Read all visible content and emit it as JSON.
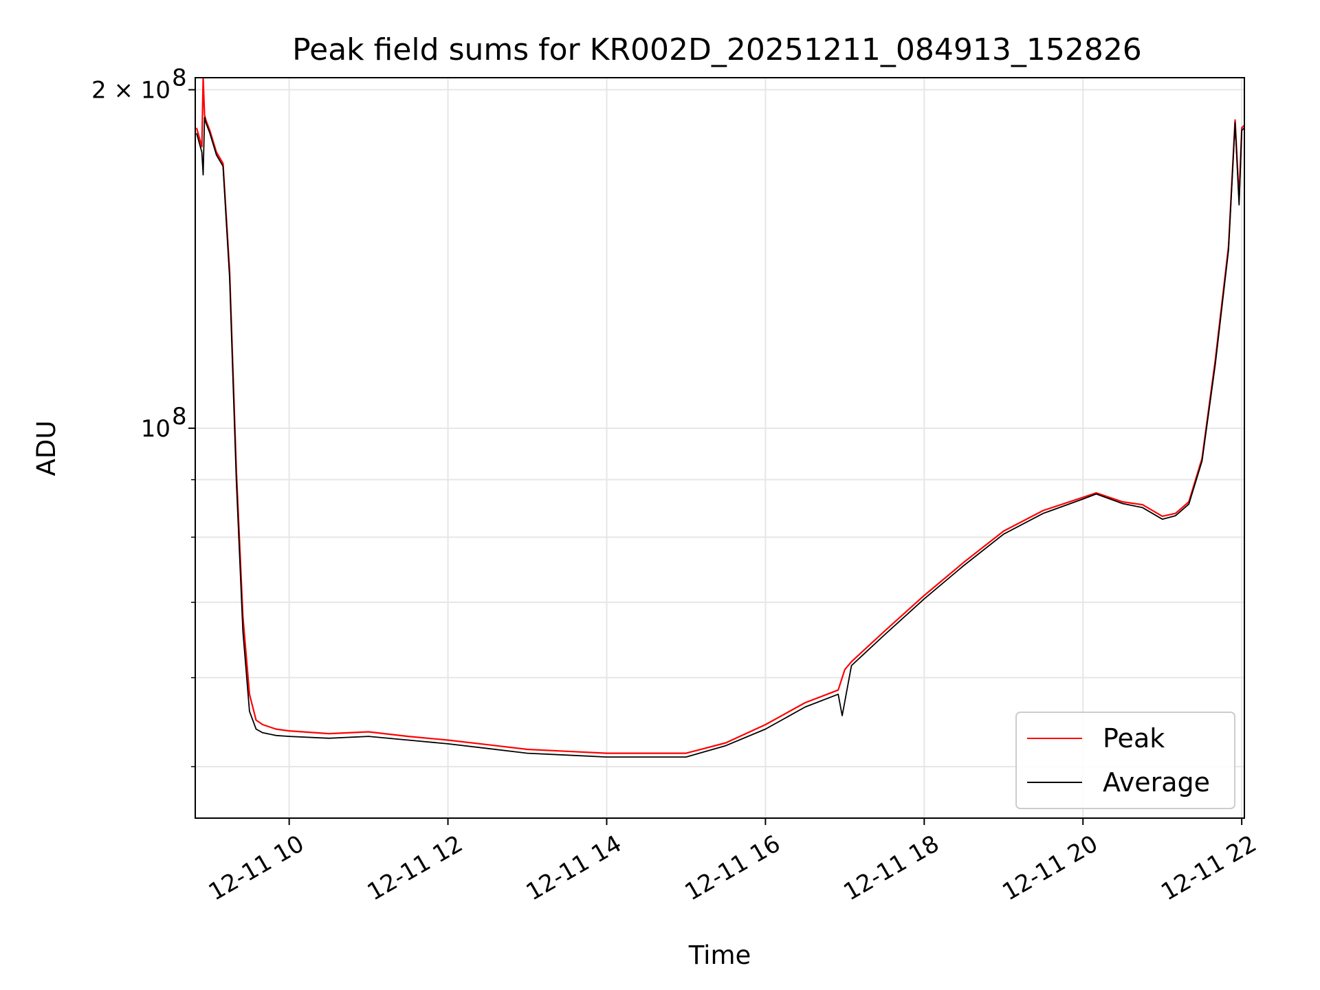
{
  "chart_data": {
    "type": "line",
    "title": "Peak field sums for KR002D_20251211_084913_152826",
    "xlabel": "Time",
    "ylabel": "ADU",
    "y_scale": "log",
    "xlim": [
      "2025-12-11 08:49",
      "2025-12-11 22:02"
    ],
    "ylim": [
      45000000,
      205000000
    ],
    "grid": true,
    "legend_position": "lower right",
    "x_ticks": [
      "12-11 10",
      "12-11 12",
      "12-11 14",
      "12-11 16",
      "12-11 18",
      "12-11 20",
      "12-11 22"
    ],
    "y_ticks": [
      {
        "value": 200000000,
        "label": "2 × 10⁸",
        "mantissa": "2 × 10",
        "exp": "8"
      },
      {
        "value": 100000000,
        "label": "10⁸",
        "mantissa": "10",
        "exp": "8"
      }
    ],
    "y_minor_ticks": [
      50000000,
      60000000,
      70000000,
      80000000,
      90000000
    ],
    "series": [
      {
        "name": "Peak",
        "color": "#ff0000",
        "x": [
          "08:50",
          "08:54",
          "08:55",
          "08:56",
          "08:57",
          "09:00",
          "09:05",
          "09:10",
          "09:15",
          "09:20",
          "09:25",
          "09:30",
          "09:35",
          "09:40",
          "09:50",
          "10:00",
          "10:30",
          "11:00",
          "11:30",
          "12:00",
          "12:30",
          "13:00",
          "13:30",
          "14:00",
          "14:30",
          "15:00",
          "15:30",
          "16:00",
          "16:30",
          "16:55",
          "17:00",
          "17:05",
          "17:30",
          "18:00",
          "18:30",
          "19:00",
          "19:30",
          "20:00",
          "20:10",
          "20:30",
          "20:45",
          "21:00",
          "21:10",
          "21:20",
          "21:30",
          "21:40",
          "21:50",
          "21:55",
          "21:58",
          "22:00",
          "22:02"
        ],
        "values": [
          185000000,
          178000000,
          205000000,
          190000000,
          188000000,
          184000000,
          176000000,
          172000000,
          138000000,
          92000000,
          68000000,
          58000000,
          55000000,
          54500000,
          54000000,
          53800000,
          53500000,
          53700000,
          53200000,
          52800000,
          52300000,
          51800000,
          51600000,
          51400000,
          51400000,
          51400000,
          52500000,
          54500000,
          57000000,
          58500000,
          61000000,
          62000000,
          66000000,
          71000000,
          76000000,
          81000000,
          84500000,
          86800000,
          87600000,
          86000000,
          85500000,
          83500000,
          84000000,
          86000000,
          94000000,
          115000000,
          145000000,
          188000000,
          160000000,
          185000000,
          186000000
        ]
      },
      {
        "name": "Average",
        "color": "#000000",
        "x": [
          "08:50",
          "08:54",
          "08:55",
          "08:56",
          "08:57",
          "09:00",
          "09:05",
          "09:10",
          "09:15",
          "09:20",
          "09:25",
          "09:30",
          "09:35",
          "09:40",
          "09:50",
          "10:00",
          "10:30",
          "11:00",
          "11:30",
          "12:00",
          "12:30",
          "13:00",
          "13:30",
          "14:00",
          "14:30",
          "15:00",
          "15:30",
          "16:00",
          "16:30",
          "16:55",
          "16:58",
          "17:05",
          "17:30",
          "18:00",
          "18:30",
          "19:00",
          "19:30",
          "20:00",
          "20:10",
          "20:30",
          "20:45",
          "21:00",
          "21:10",
          "21:20",
          "21:30",
          "21:40",
          "21:50",
          "21:55",
          "21:58",
          "22:00",
          "22:02"
        ],
        "values": [
          183000000,
          176000000,
          168000000,
          189000000,
          187000000,
          183000000,
          175000000,
          171000000,
          136000000,
          90000000,
          66000000,
          56000000,
          54000000,
          53600000,
          53300000,
          53200000,
          53000000,
          53200000,
          52800000,
          52400000,
          51900000,
          51400000,
          51200000,
          51000000,
          51000000,
          51000000,
          52200000,
          54000000,
          56500000,
          58000000,
          55500000,
          61500000,
          65500000,
          70500000,
          75500000,
          80500000,
          84000000,
          86500000,
          87400000,
          85700000,
          85000000,
          83000000,
          83600000,
          85600000,
          93500000,
          114000000,
          144000000,
          187000000,
          158000000,
          184000000,
          185000000
        ]
      }
    ]
  }
}
